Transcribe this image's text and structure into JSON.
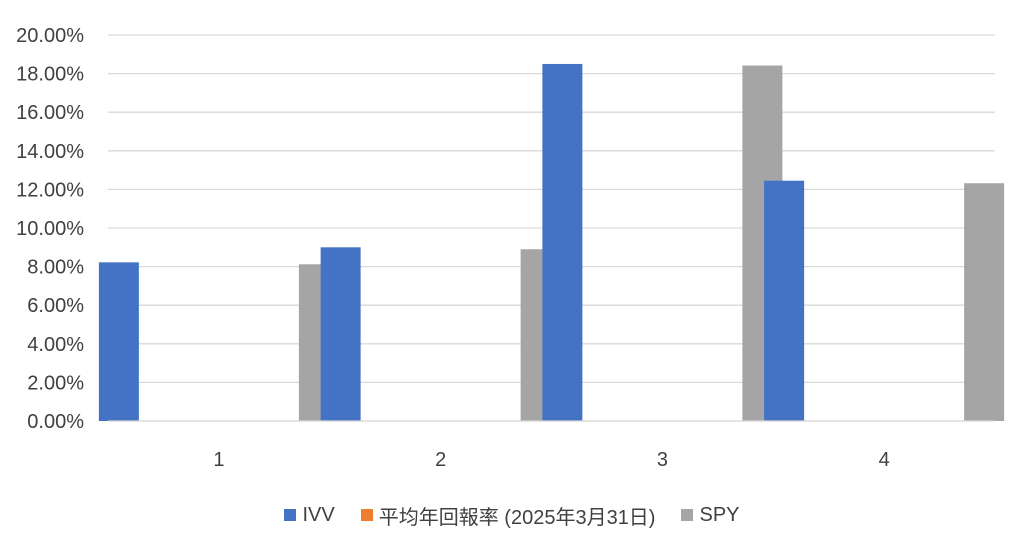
{
  "chart_data": {
    "type": "bar",
    "title": "",
    "xlabel": "",
    "ylabel": "",
    "categories": [
      "1",
      "2",
      "3",
      "4"
    ],
    "y_ticks": [
      "0.00%",
      "2.00%",
      "4.00%",
      "6.00%",
      "8.00%",
      "10.00%",
      "12.00%",
      "14.00%",
      "16.00%",
      "18.00%",
      "20.00%"
    ],
    "ylim": [
      0,
      20
    ],
    "grid": true,
    "legend_position": "bottom",
    "series": [
      {
        "name": "IVV",
        "color": "#4472C4",
        "values": [
          8.22,
          9.0,
          18.5,
          12.45
        ]
      },
      {
        "name": "平均年回報率 (2025年3月31日)",
        "color": "#ED7D31",
        "values": [
          null,
          null,
          null,
          null
        ]
      },
      {
        "name": "SPY",
        "color": "#A5A5A5",
        "values": [
          8.12,
          8.9,
          18.42,
          12.32
        ]
      }
    ]
  }
}
